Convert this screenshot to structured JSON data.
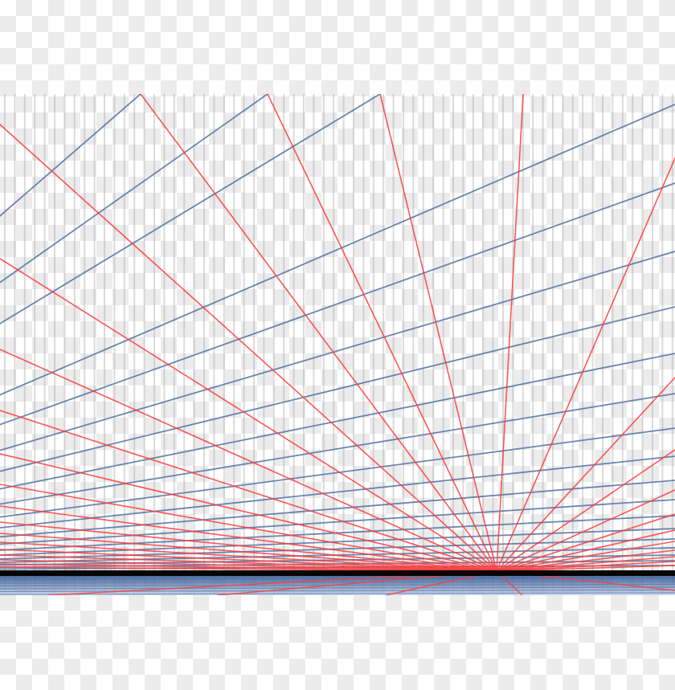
{
  "colors": {
    "converging_lines": "#ff3b3b",
    "receding_lines": "#5b79a8",
    "horizon_bar": "#050505",
    "ground_band": "#2f5a9a",
    "vertical_stripes": "#9a9a9a"
  }
}
